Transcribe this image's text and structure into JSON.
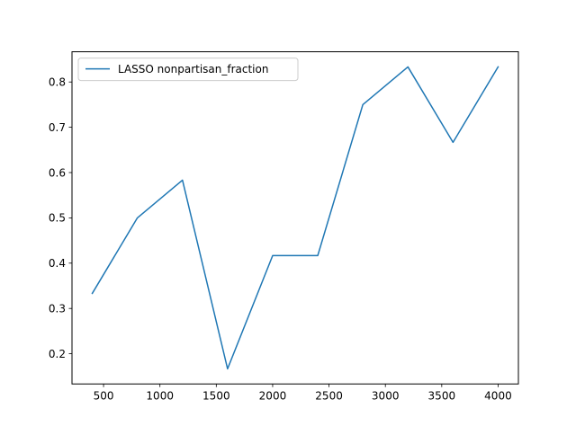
{
  "chart_data": {
    "type": "line",
    "title": "",
    "xlabel": "",
    "ylabel": "",
    "xlim": [
      220,
      4180
    ],
    "ylim": [
      0.1333,
      0.8667
    ],
    "xticks": [
      500,
      1000,
      1500,
      2000,
      2500,
      3000,
      3500,
      4000
    ],
    "xtick_labels": [
      "500",
      "1000",
      "1500",
      "2000",
      "2500",
      "3000",
      "3500",
      "4000"
    ],
    "yticks": [
      0.2,
      0.3,
      0.4,
      0.5,
      0.6,
      0.7,
      0.8
    ],
    "ytick_labels": [
      "0.2",
      "0.3",
      "0.4",
      "0.5",
      "0.6",
      "0.7",
      "0.8"
    ],
    "grid": false,
    "legend": {
      "placement": "top-left",
      "entries": [
        "LASSO nonpartisan_fraction"
      ]
    },
    "series": [
      {
        "name": "LASSO nonpartisan_fraction",
        "color": "#1f77b4",
        "x": [
          400,
          800,
          1200,
          1600,
          2000,
          2400,
          2800,
          3200,
          3600,
          4000
        ],
        "y": [
          0.3333,
          0.5,
          0.5833,
          0.1667,
          0.4167,
          0.4167,
          0.75,
          0.8333,
          0.6667,
          0.8333
        ]
      }
    ]
  }
}
